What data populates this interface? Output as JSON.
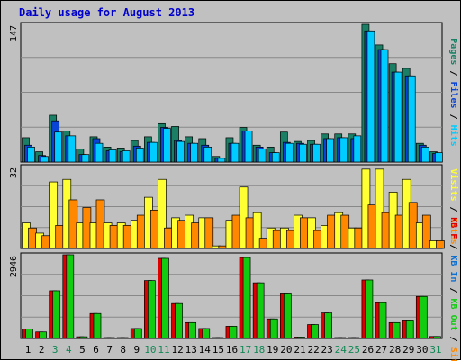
{
  "title": "Daily usage for August 2013",
  "colors": {
    "pages": "#1b7f65",
    "files": "#0a44d6",
    "hits": "#00ccff",
    "visits": "#ffff33",
    "sites": "#ff8800",
    "kbf": "#dd0000",
    "kbin": "#1070d0",
    "kbout": "#11cc11",
    "weekend": "#118855",
    "weekday": "#000000",
    "panel": "#c0c0c0",
    "grid": "#888888",
    "background": "#c0c0c0"
  },
  "chart_data": [
    {
      "type": "bar",
      "panel": "top",
      "ymax_label": "147",
      "ylim": [
        0,
        147
      ],
      "legend": [
        {
          "key": "pages",
          "text": "Pages"
        },
        {
          "key": "sep",
          "text": " / "
        },
        {
          "key": "files",
          "text": "Files"
        },
        {
          "key": "sep",
          "text": " / "
        },
        {
          "key": "hits",
          "text": "Hits"
        }
      ],
      "categories": [
        "1",
        "2",
        "3",
        "4",
        "5",
        "6",
        "7",
        "8",
        "9",
        "10",
        "11",
        "12",
        "13",
        "14",
        "15",
        "16",
        "17",
        "18",
        "19",
        "20",
        "21",
        "22",
        "23",
        "24",
        "25",
        "26",
        "27",
        "28",
        "29",
        "30",
        "31"
      ],
      "series": [
        {
          "name": "Pages",
          "values": [
            26,
            11,
            50,
            33,
            14,
            27,
            16,
            15,
            23,
            27,
            41,
            38,
            27,
            25,
            6,
            26,
            37,
            18,
            16,
            32,
            22,
            23,
            30,
            30,
            30,
            147,
            125,
            105,
            100,
            20,
            11
          ]
        },
        {
          "name": "Files",
          "values": [
            18,
            7,
            44,
            28,
            8,
            25,
            12,
            11,
            17,
            21,
            37,
            23,
            20,
            18,
            4,
            20,
            33,
            16,
            10,
            21,
            20,
            19,
            25,
            26,
            25,
            140,
            120,
            96,
            92,
            18,
            9
          ]
        },
        {
          "name": "Hits",
          "values": [
            16,
            6,
            32,
            28,
            8,
            20,
            13,
            12,
            15,
            21,
            36,
            22,
            20,
            16,
            4,
            20,
            33,
            14,
            10,
            20,
            19,
            19,
            25,
            26,
            28,
            140,
            120,
            96,
            92,
            16,
            10
          ]
        }
      ]
    },
    {
      "type": "bar",
      "panel": "middle",
      "ymax_label": "32",
      "ylim": [
        0,
        32
      ],
      "legend": [
        {
          "key": "visits",
          "text": "Visits"
        },
        {
          "key": "sep",
          "text": " / "
        },
        {
          "key": "sites",
          "text": "Sites"
        }
      ],
      "categories": [
        "1",
        "2",
        "3",
        "4",
        "5",
        "6",
        "7",
        "8",
        "9",
        "10",
        "11",
        "12",
        "13",
        "14",
        "15",
        "16",
        "17",
        "18",
        "19",
        "20",
        "21",
        "22",
        "23",
        "24",
        "25",
        "26",
        "27",
        "28",
        "29",
        "30",
        "31"
      ],
      "series": [
        {
          "name": "Visits",
          "values": [
            10,
            6,
            26,
            27,
            10,
            10,
            10,
            10,
            11,
            20,
            27,
            12,
            13,
            12,
            1,
            11,
            24,
            14,
            8,
            8,
            13,
            12,
            9,
            14,
            8,
            31,
            31,
            22,
            27,
            10,
            3
          ]
        },
        {
          "name": "Sites",
          "values": [
            8,
            5,
            9,
            19,
            16,
            19,
            9,
            9,
            13,
            15,
            8,
            11,
            10,
            12,
            1,
            13,
            12,
            4,
            7,
            7,
            12,
            7,
            13,
            13,
            8,
            17,
            14,
            13,
            18,
            13,
            3
          ]
        }
      ]
    },
    {
      "type": "bar",
      "panel": "bottom",
      "ymax_label": "2946",
      "ylim": [
        0,
        2946
      ],
      "legend": [
        {
          "key": "kbf",
          "text": "KB F"
        },
        {
          "key": "sep",
          "text": " / "
        },
        {
          "key": "kbin",
          "text": "KB In"
        },
        {
          "key": "sep",
          "text": " / "
        },
        {
          "key": "kbout",
          "text": "KB Out"
        },
        {
          "key": "sep",
          "text": " / "
        },
        {
          "key": "sites",
          "text": "Sites"
        }
      ],
      "categories": [
        "1",
        "2",
        "3",
        "4",
        "5",
        "6",
        "7",
        "8",
        "9",
        "10",
        "11",
        "12",
        "13",
        "14",
        "15",
        "16",
        "17",
        "18",
        "19",
        "20",
        "21",
        "22",
        "23",
        "24",
        "25",
        "26",
        "27",
        "28",
        "29",
        "30",
        "31"
      ],
      "series": [
        {
          "name": "KB F",
          "values": [
            330,
            230,
            1680,
            2946,
            60,
            880,
            30,
            30,
            350,
            2040,
            2820,
            1230,
            560,
            350,
            30,
            430,
            2850,
            1960,
            690,
            1570,
            50,
            490,
            900,
            30,
            30,
            2060,
            1260,
            560,
            620,
            1480,
            70
          ]
        },
        {
          "name": "KB Out",
          "values": [
            330,
            230,
            1680,
            2946,
            60,
            880,
            30,
            30,
            350,
            2040,
            2820,
            1230,
            560,
            350,
            30,
            430,
            2850,
            1960,
            690,
            1570,
            50,
            490,
            900,
            30,
            30,
            2060,
            1260,
            560,
            620,
            1480,
            70
          ]
        }
      ]
    }
  ],
  "x_axis": {
    "labels": [
      "1",
      "2",
      "3",
      "4",
      "5",
      "6",
      "7",
      "8",
      "9",
      "10",
      "11",
      "12",
      "13",
      "14",
      "15",
      "16",
      "17",
      "18",
      "19",
      "20",
      "21",
      "22",
      "23",
      "24",
      "25",
      "26",
      "27",
      "28",
      "29",
      "30",
      "31"
    ],
    "weekend": [
      false,
      false,
      true,
      true,
      false,
      false,
      false,
      false,
      false,
      true,
      true,
      false,
      false,
      false,
      false,
      false,
      true,
      true,
      false,
      false,
      false,
      false,
      false,
      true,
      true,
      false,
      false,
      false,
      false,
      false,
      true
    ]
  }
}
